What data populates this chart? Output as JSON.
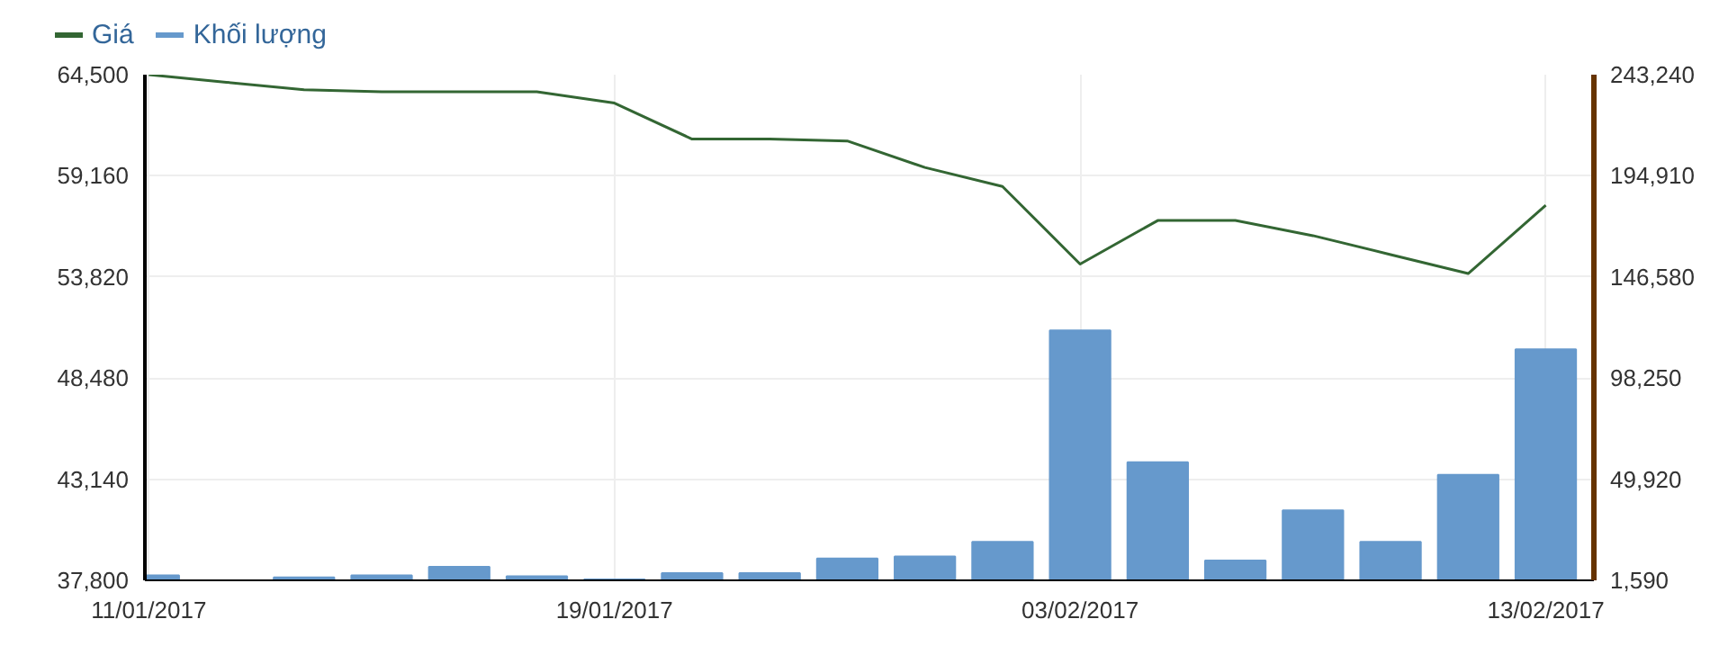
{
  "chart_data": {
    "type": "line",
    "categories": [
      "11/01/2017",
      null,
      null,
      null,
      null,
      null,
      "19/01/2017",
      null,
      null,
      null,
      null,
      null,
      "03/02/2017",
      null,
      null,
      null,
      null,
      null,
      "13/02/2017"
    ],
    "series": [
      {
        "name": "Giá",
        "color": "#336633",
        "values": [
          64500,
          64100,
          63700,
          63600,
          63600,
          63600,
          63000,
          61100,
          61100,
          61000,
          59600,
          58600,
          54500,
          56800,
          56800,
          56000,
          55000,
          54000,
          57600
        ]
      },
      {
        "name": "Khối lượng",
        "color": "#6699cc",
        "type": "bar",
        "axis": "y2",
        "values": [
          4000,
          null,
          3000,
          4000,
          8000,
          3500,
          2000,
          5000,
          5000,
          12000,
          13000,
          20000,
          121000,
          58000,
          11000,
          35000,
          20000,
          52000,
          112000
        ]
      }
    ],
    "ylim": [
      37800,
      64500
    ],
    "yticks": [
      {
        "value": 37800,
        "label": "37,800"
      },
      {
        "value": 43140,
        "label": "43,140"
      },
      {
        "value": 48480,
        "label": "48,480"
      },
      {
        "value": 53820,
        "label": "53,820"
      },
      {
        "value": 59160,
        "label": "59,160"
      },
      {
        "value": 64500,
        "label": "64,500"
      }
    ],
    "y2lim": [
      1590,
      243240
    ],
    "y2ticks": [
      {
        "value": 1590,
        "label": "1,590"
      },
      {
        "value": 49920,
        "label": "49,920"
      },
      {
        "value": 98250,
        "label": "98,250"
      },
      {
        "value": 146580,
        "label": "146,580"
      },
      {
        "value": 194910,
        "label": "194,910"
      },
      {
        "value": 243240,
        "label": "243,240"
      }
    ],
    "grid": true,
    "legend": "top left"
  }
}
